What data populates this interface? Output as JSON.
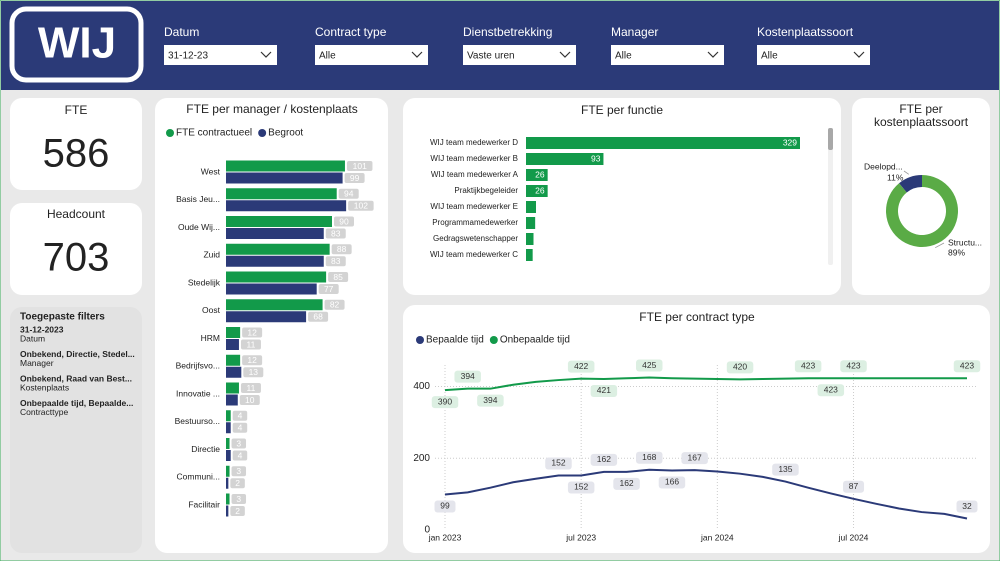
{
  "header": {
    "logo": "WIJ",
    "filters": [
      {
        "label": "Datum",
        "value": "31-12-23"
      },
      {
        "label": "Contract type",
        "value": "Alle"
      },
      {
        "label": "Dienstbetrekking",
        "value": "Vaste uren"
      },
      {
        "label": "Manager",
        "value": "Alle"
      },
      {
        "label": "Kostenplaatssoort",
        "value": "Alle"
      }
    ]
  },
  "cards": [
    {
      "title": "FTE",
      "value": 586
    },
    {
      "title": "Headcount",
      "value": 703
    }
  ],
  "applied_filters": {
    "title": "Toegepaste filters",
    "items": [
      {
        "value": "31-12-2023",
        "field": "Datum"
      },
      {
        "value": "Onbekend, Directie, Stedel...",
        "field": "Manager"
      },
      {
        "value": "Onbekend, Raad van Best...",
        "field": "Kostenplaats"
      },
      {
        "value": "Onbepaalde tijd, Bepaalde...",
        "field": "Contracttype"
      }
    ]
  },
  "chart_data": [
    {
      "type": "hbar",
      "title": "FTE per manager / kostenplaats",
      "categories": [
        "West",
        "Basis Jeu...",
        "Oude Wij...",
        "Zuid",
        "Stedelijk",
        "Oost",
        "HRM",
        "Bedrijfsvo...",
        "Innovatie ...",
        "Bestuurso...",
        "Directie",
        "Communi...",
        "Facilitair"
      ],
      "series": [
        {
          "name": "FTE contractueel",
          "color": "#129a4a",
          "values": [
            101,
            94,
            90,
            88,
            85,
            82,
            12,
            12,
            11,
            4,
            3,
            3,
            3
          ]
        },
        {
          "name": "Begroot",
          "color": "#2b3a78",
          "values": [
            99,
            102,
            83,
            83,
            77,
            68,
            11,
            13,
            10,
            4,
            4,
            2,
            2
          ]
        }
      ],
      "xlim": [
        0,
        135
      ]
    },
    {
      "type": "hbar",
      "title": "FTE per functie",
      "categories": [
        "WIJ team medewerker D",
        "WIJ team medewerker B",
        "WIJ team medewerker A",
        "Praktijkbegeleider",
        "WIJ team medewerker E",
        "Programmamedewerker",
        "Gedragswetenschapper",
        "WIJ team medewerker C"
      ],
      "values": [
        329,
        93,
        26,
        26,
        12,
        11,
        9,
        8
      ],
      "value_labels": [
        "329",
        "93",
        "26",
        "26",
        null,
        null,
        null,
        null
      ],
      "color": "#129a4a",
      "xlim": [
        0,
        329
      ]
    },
    {
      "type": "donut",
      "title": "FTE per kostenplaatssoort",
      "categories": [
        "Deelopd...",
        "Structu..."
      ],
      "values": [
        11,
        89
      ],
      "value_labels": [
        "11%",
        "89%"
      ],
      "colors": [
        "#2b3a78",
        "#5aab46"
      ]
    },
    {
      "type": "line",
      "title": "FTE per contract type",
      "x": [
        "2023-01",
        "2023-02",
        "2023-03",
        "2023-04",
        "2023-05",
        "2023-06",
        "2023-07",
        "2023-08",
        "2023-09",
        "2023-10",
        "2023-11",
        "2023-12",
        "2024-01",
        "2024-02",
        "2024-03",
        "2024-04",
        "2024-05",
        "2024-06",
        "2024-07",
        "2024-08",
        "2024-09",
        "2024-10",
        "2024-11",
        "2024-12"
      ],
      "series": [
        {
          "name": "Bepaalde tijd",
          "color": "#2b3a78",
          "values": [
            99,
            105,
            118,
            133,
            143,
            152,
            152,
            162,
            162,
            168,
            166,
            167,
            163,
            157,
            148,
            135,
            118,
            102,
            87,
            73,
            60,
            50,
            45,
            32
          ],
          "value_labels": [
            "99",
            null,
            null,
            null,
            null,
            "152",
            "152",
            "162",
            "162",
            "168",
            "166",
            "167",
            null,
            null,
            null,
            "135",
            null,
            null,
            "87",
            null,
            null,
            null,
            null,
            "32"
          ]
        },
        {
          "name": "Onbepaalde tijd",
          "color": "#129a4a",
          "values": [
            390,
            394,
            394,
            405,
            413,
            418,
            422,
            421,
            423,
            425,
            423,
            422,
            421,
            420,
            421,
            422,
            423,
            423,
            423,
            423,
            423,
            423,
            423,
            423
          ],
          "value_labels": [
            "390",
            "394",
            "394",
            null,
            null,
            null,
            "422",
            "421",
            null,
            "425",
            null,
            null,
            null,
            "420",
            null,
            null,
            "423",
            "423",
            "423",
            null,
            null,
            null,
            null,
            "423"
          ]
        }
      ],
      "xlim": [
        "2023-01",
        "2024-12"
      ],
      "xticks": [
        {
          "value": "2023-01",
          "label": "jan 2023"
        },
        {
          "value": "2023-07",
          "label": "jul 2023"
        },
        {
          "value": "2024-01",
          "label": "jan 2024"
        },
        {
          "value": "2024-07",
          "label": "jul 2024"
        }
      ],
      "ylim": [
        0,
        460
      ],
      "yticks": [
        0,
        200,
        400
      ],
      "grid": true
    }
  ]
}
